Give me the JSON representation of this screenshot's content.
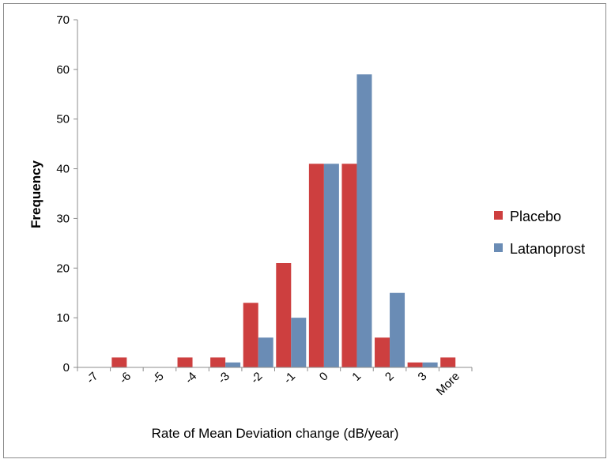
{
  "chart_data": {
    "type": "bar",
    "xlabel": "Rate of Mean Deviation change (dB/year)",
    "ylabel": "Frequency",
    "ylim": [
      0,
      70
    ],
    "yticks": [
      0,
      10,
      20,
      30,
      40,
      50,
      60,
      70
    ],
    "categories": [
      "-7",
      "-6",
      "-5",
      "-4",
      "-3",
      "-2",
      "-1",
      "0",
      "1",
      "2",
      "3",
      "More"
    ],
    "series": [
      {
        "name": "Placebo",
        "color": "#cd3f3f",
        "values": [
          0,
          2,
          0,
          2,
          2,
          13,
          21,
          41,
          41,
          6,
          1,
          2
        ]
      },
      {
        "name": "Latanoprost",
        "color": "#6a8cb5",
        "values": [
          0,
          0,
          0,
          0,
          1,
          6,
          10,
          41,
          59,
          15,
          1,
          0
        ]
      }
    ],
    "legend_position": "right",
    "grid": false
  }
}
